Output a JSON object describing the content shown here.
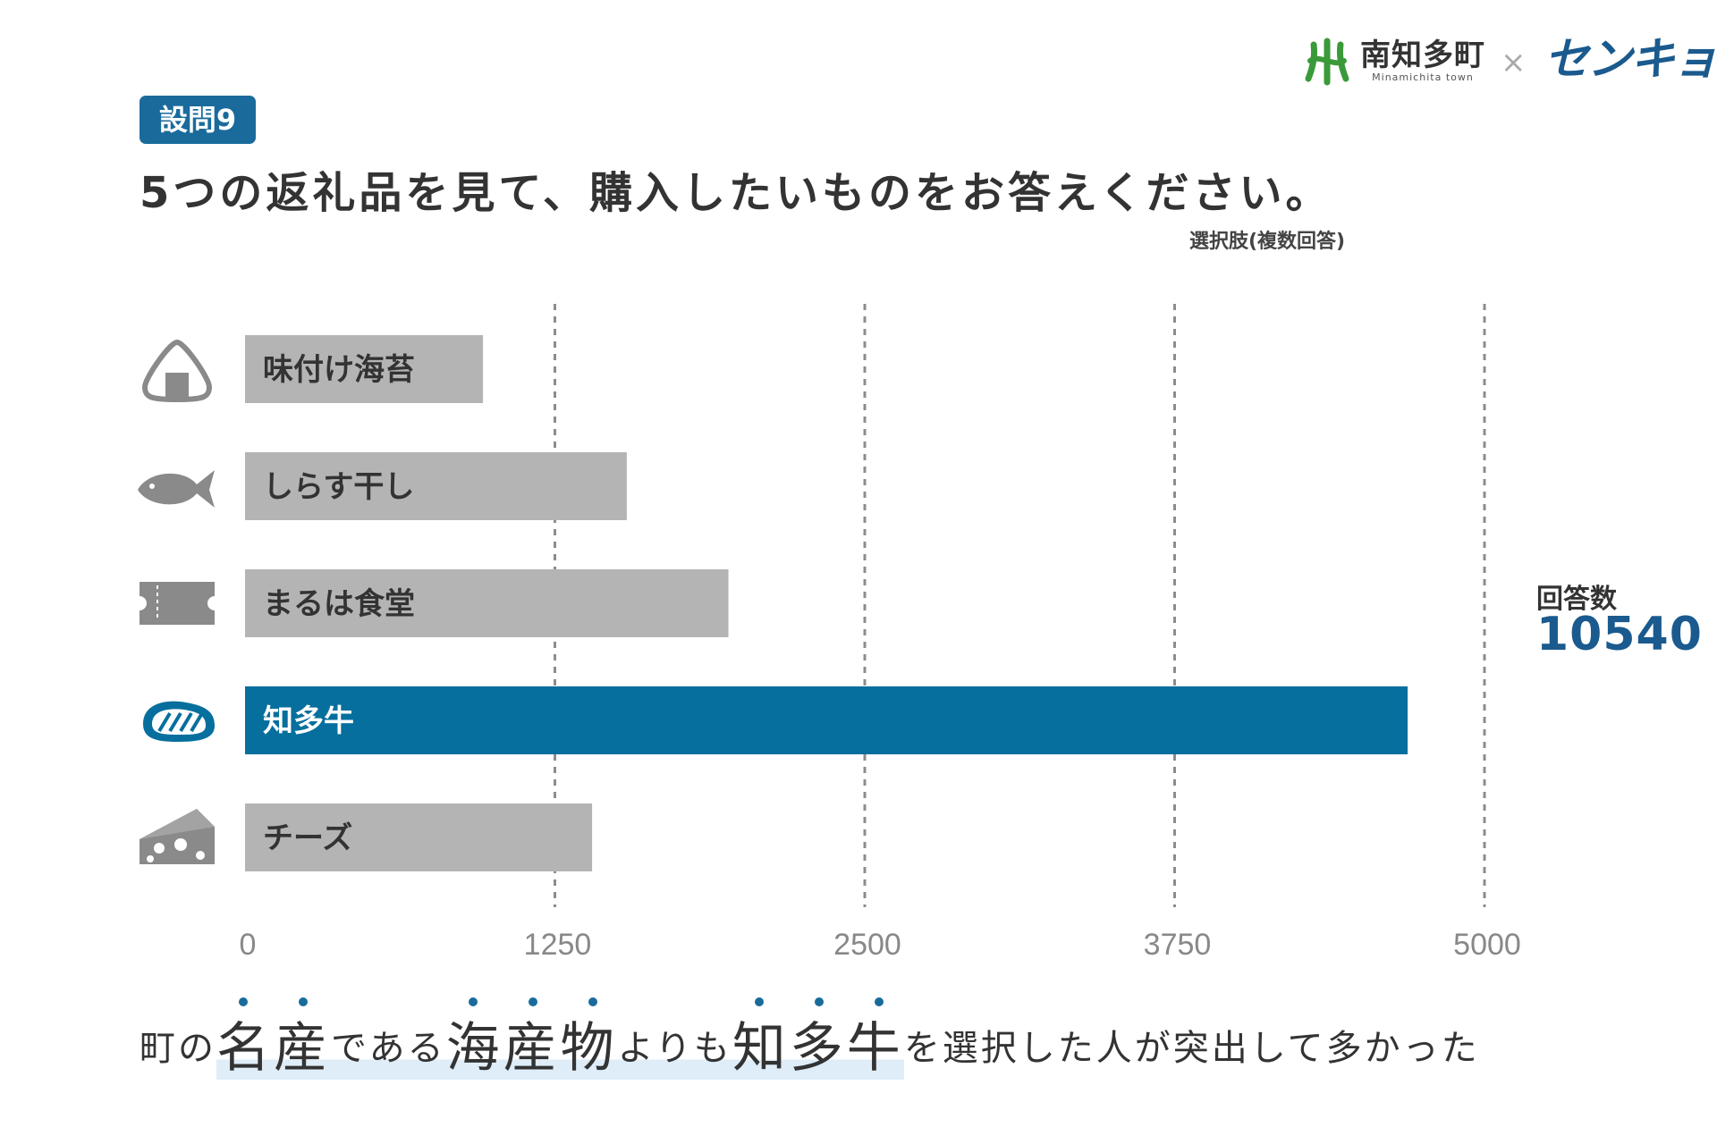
{
  "header": {
    "town_name": "南知多町",
    "town_sub": "Minamichita town",
    "times": "×",
    "partner": "センキョ"
  },
  "question": {
    "badge": "設問9",
    "title": "5つの返礼品を見て、購入したいものをお答えください。",
    "note": "選択肢(複数回答)"
  },
  "response": {
    "label": "回答数",
    "count": "10540"
  },
  "colors": {
    "highlight_bar": "#066f9e",
    "default_bar": "#b4b4b4",
    "accent_text": "#1a5a8e",
    "icon": "#8a8a8a"
  },
  "chart_data": {
    "type": "bar",
    "orientation": "horizontal",
    "categories": [
      "味付け海苔",
      "しらす干し",
      "まるは食堂",
      "知多牛",
      "チーズ"
    ],
    "values": [
      960,
      1540,
      1950,
      4690,
      1400
    ],
    "highlight": "知多牛",
    "icons": [
      "onigiri-icon",
      "fish-icon",
      "ticket-icon",
      "steak-icon",
      "cheese-icon"
    ],
    "xlim": [
      0,
      5000
    ],
    "ticks": [
      "0",
      "1250",
      "2500",
      "3750",
      "5000"
    ],
    "grid": true,
    "title": "",
    "xlabel": "",
    "ylabel": ""
  },
  "statement": {
    "p1": "町の",
    "p2": "名産",
    "p3": "である",
    "p4": "海産物",
    "p5": "よりも",
    "p6": "知多牛",
    "p7": "を選択した人が突出して多かった"
  }
}
